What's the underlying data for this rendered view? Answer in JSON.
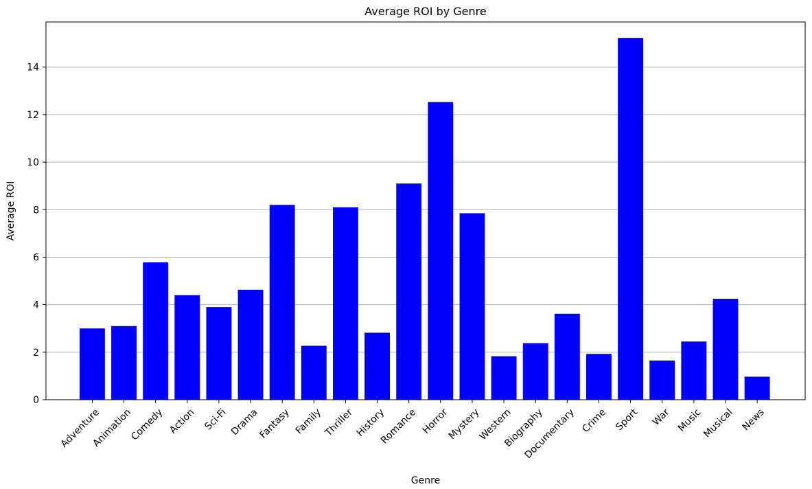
{
  "chart_data": {
    "type": "bar",
    "title": "Average ROI by Genre",
    "xlabel": "Genre",
    "ylabel": "Average ROI",
    "ylim": [
      0,
      15.9
    ],
    "yticks": [
      0,
      2,
      4,
      6,
      8,
      10,
      12,
      14
    ],
    "grid": "y-axis",
    "bar_color": "#0000ff",
    "categories": [
      "Adventure",
      "Animation",
      "Comedy",
      "Action",
      "Sci-Fi",
      "Drama",
      "Fantasy",
      "Family",
      "Thriller",
      "History",
      "Romance",
      "Horror",
      "Mystery",
      "Western",
      "Biography",
      "Documentary",
      "Crime",
      "Sport",
      "War",
      "Music",
      "Musical",
      "News"
    ],
    "values": [
      3.0,
      3.1,
      5.78,
      4.4,
      3.9,
      4.63,
      8.2,
      2.27,
      8.1,
      2.82,
      9.1,
      12.53,
      7.85,
      1.83,
      2.38,
      3.62,
      1.93,
      15.23,
      1.65,
      2.45,
      4.25,
      0.97
    ]
  }
}
